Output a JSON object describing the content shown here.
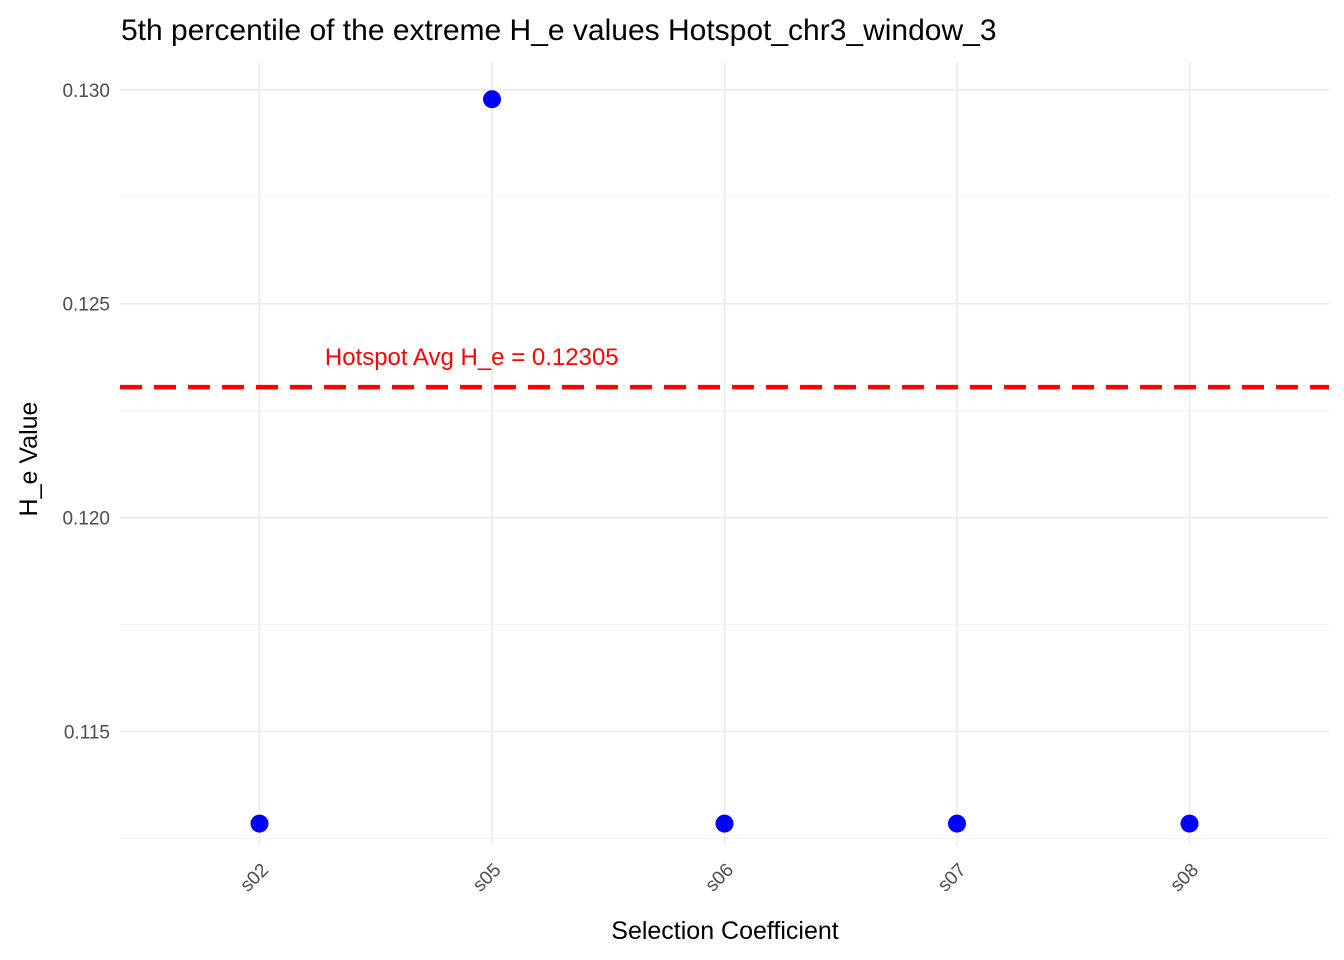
{
  "chart_data": {
    "type": "scatter",
    "title": "5th percentile of the extreme H_e values Hotspot_chr3_window_3",
    "xlabel": "Selection Coefficient",
    "ylabel": "H_e Value",
    "categories": [
      "s02",
      "s05",
      "s06",
      "s07",
      "s08"
    ],
    "series": [
      {
        "name": "H_e",
        "color": "#0000ff",
        "values": [
          0.11285,
          0.12978,
          0.11285,
          0.11285,
          0.11285
        ]
      }
    ],
    "yticks": [
      0.115,
      0.12,
      0.125,
      0.13
    ],
    "ytick_labels": [
      "0.115",
      "0.120",
      "0.125",
      "0.130"
    ],
    "ylim": [
      0.11235,
      0.13065
    ],
    "grid": true,
    "reference_line": {
      "value": 0.12305,
      "label": "Hotspot Avg H_e = 0.12305",
      "color": "#ff0000",
      "style": "dashed"
    }
  }
}
